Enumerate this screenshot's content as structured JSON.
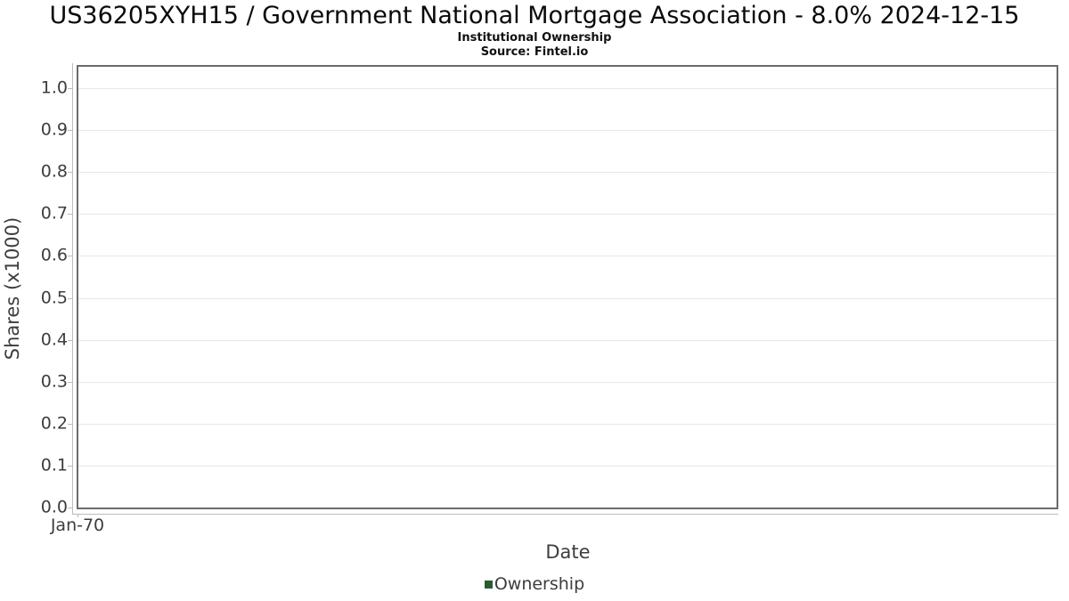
{
  "header": {
    "title": "US36205XYH15 / Government National Mortgage Association - 8.0% 2024-12-15",
    "subtitle": "Institutional Ownership",
    "source": "Source: Fintel.io"
  },
  "chart_data": {
    "type": "line",
    "title": "US36205XYH15 / Government National Mortgage Association - 8.0% 2024-12-15",
    "subtitle": "Institutional Ownership",
    "source": "Source: Fintel.io",
    "xlabel": "Date",
    "ylabel": "Shares (x1000)",
    "x_ticks": [
      "Jan-70"
    ],
    "y_ticks": [
      "0.0",
      "0.1",
      "0.2",
      "0.3",
      "0.4",
      "0.5",
      "0.6",
      "0.7",
      "0.8",
      "0.9",
      "1.0"
    ],
    "ylim": [
      0.0,
      1.0
    ],
    "grid": "horizontal",
    "legend": {
      "position": "bottom",
      "entries": [
        {
          "label": "Ownership",
          "color": "#2a5c33"
        }
      ]
    },
    "series": [
      {
        "name": "Ownership",
        "x": [],
        "values": []
      }
    ]
  },
  "colors": {
    "plot_border": "#6b6b6b",
    "gridline": "#e7e7e7",
    "axis_line": "#bcbcbc",
    "axis_text": "#3d3d3d",
    "legend_marker": "#2a5c33"
  }
}
